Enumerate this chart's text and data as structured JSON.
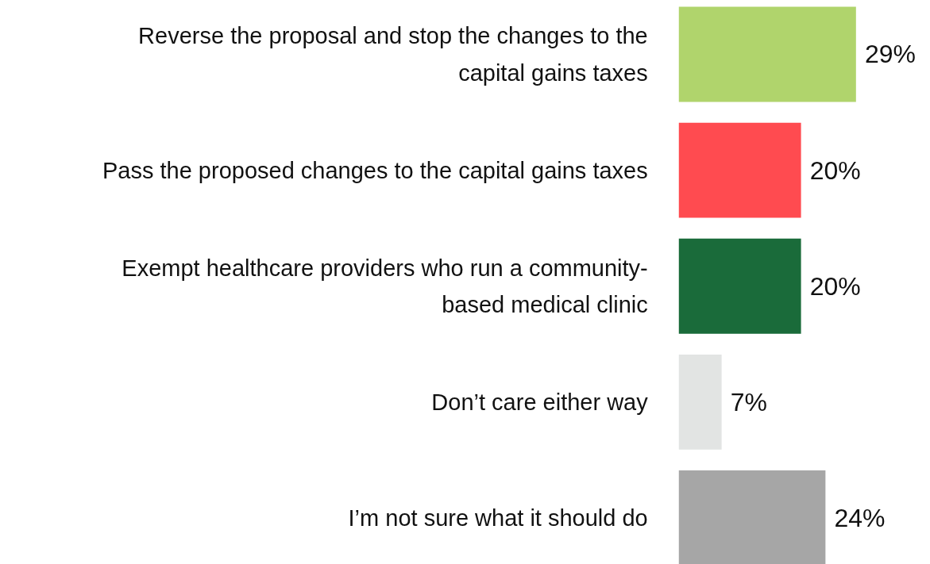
{
  "chart_data": {
    "type": "bar",
    "orientation": "horizontal",
    "categories": [
      "Reverse the proposal and stop the changes to the\ncapital gains taxes",
      "Pass the proposed changes to the capital gains taxes",
      "Exempt healthcare providers who run a community-\nbased medical clinic",
      "Don’t care either way",
      "I’m not sure what it should do"
    ],
    "values": [
      29,
      20,
      20,
      7,
      24
    ],
    "colors": [
      "#b0d46c",
      "#ff4b50",
      "#1a6b3a",
      "#e2e4e3",
      "#a6a6a6"
    ],
    "value_labels": [
      "29%",
      "20%",
      "20%",
      "7%",
      "24%"
    ]
  }
}
